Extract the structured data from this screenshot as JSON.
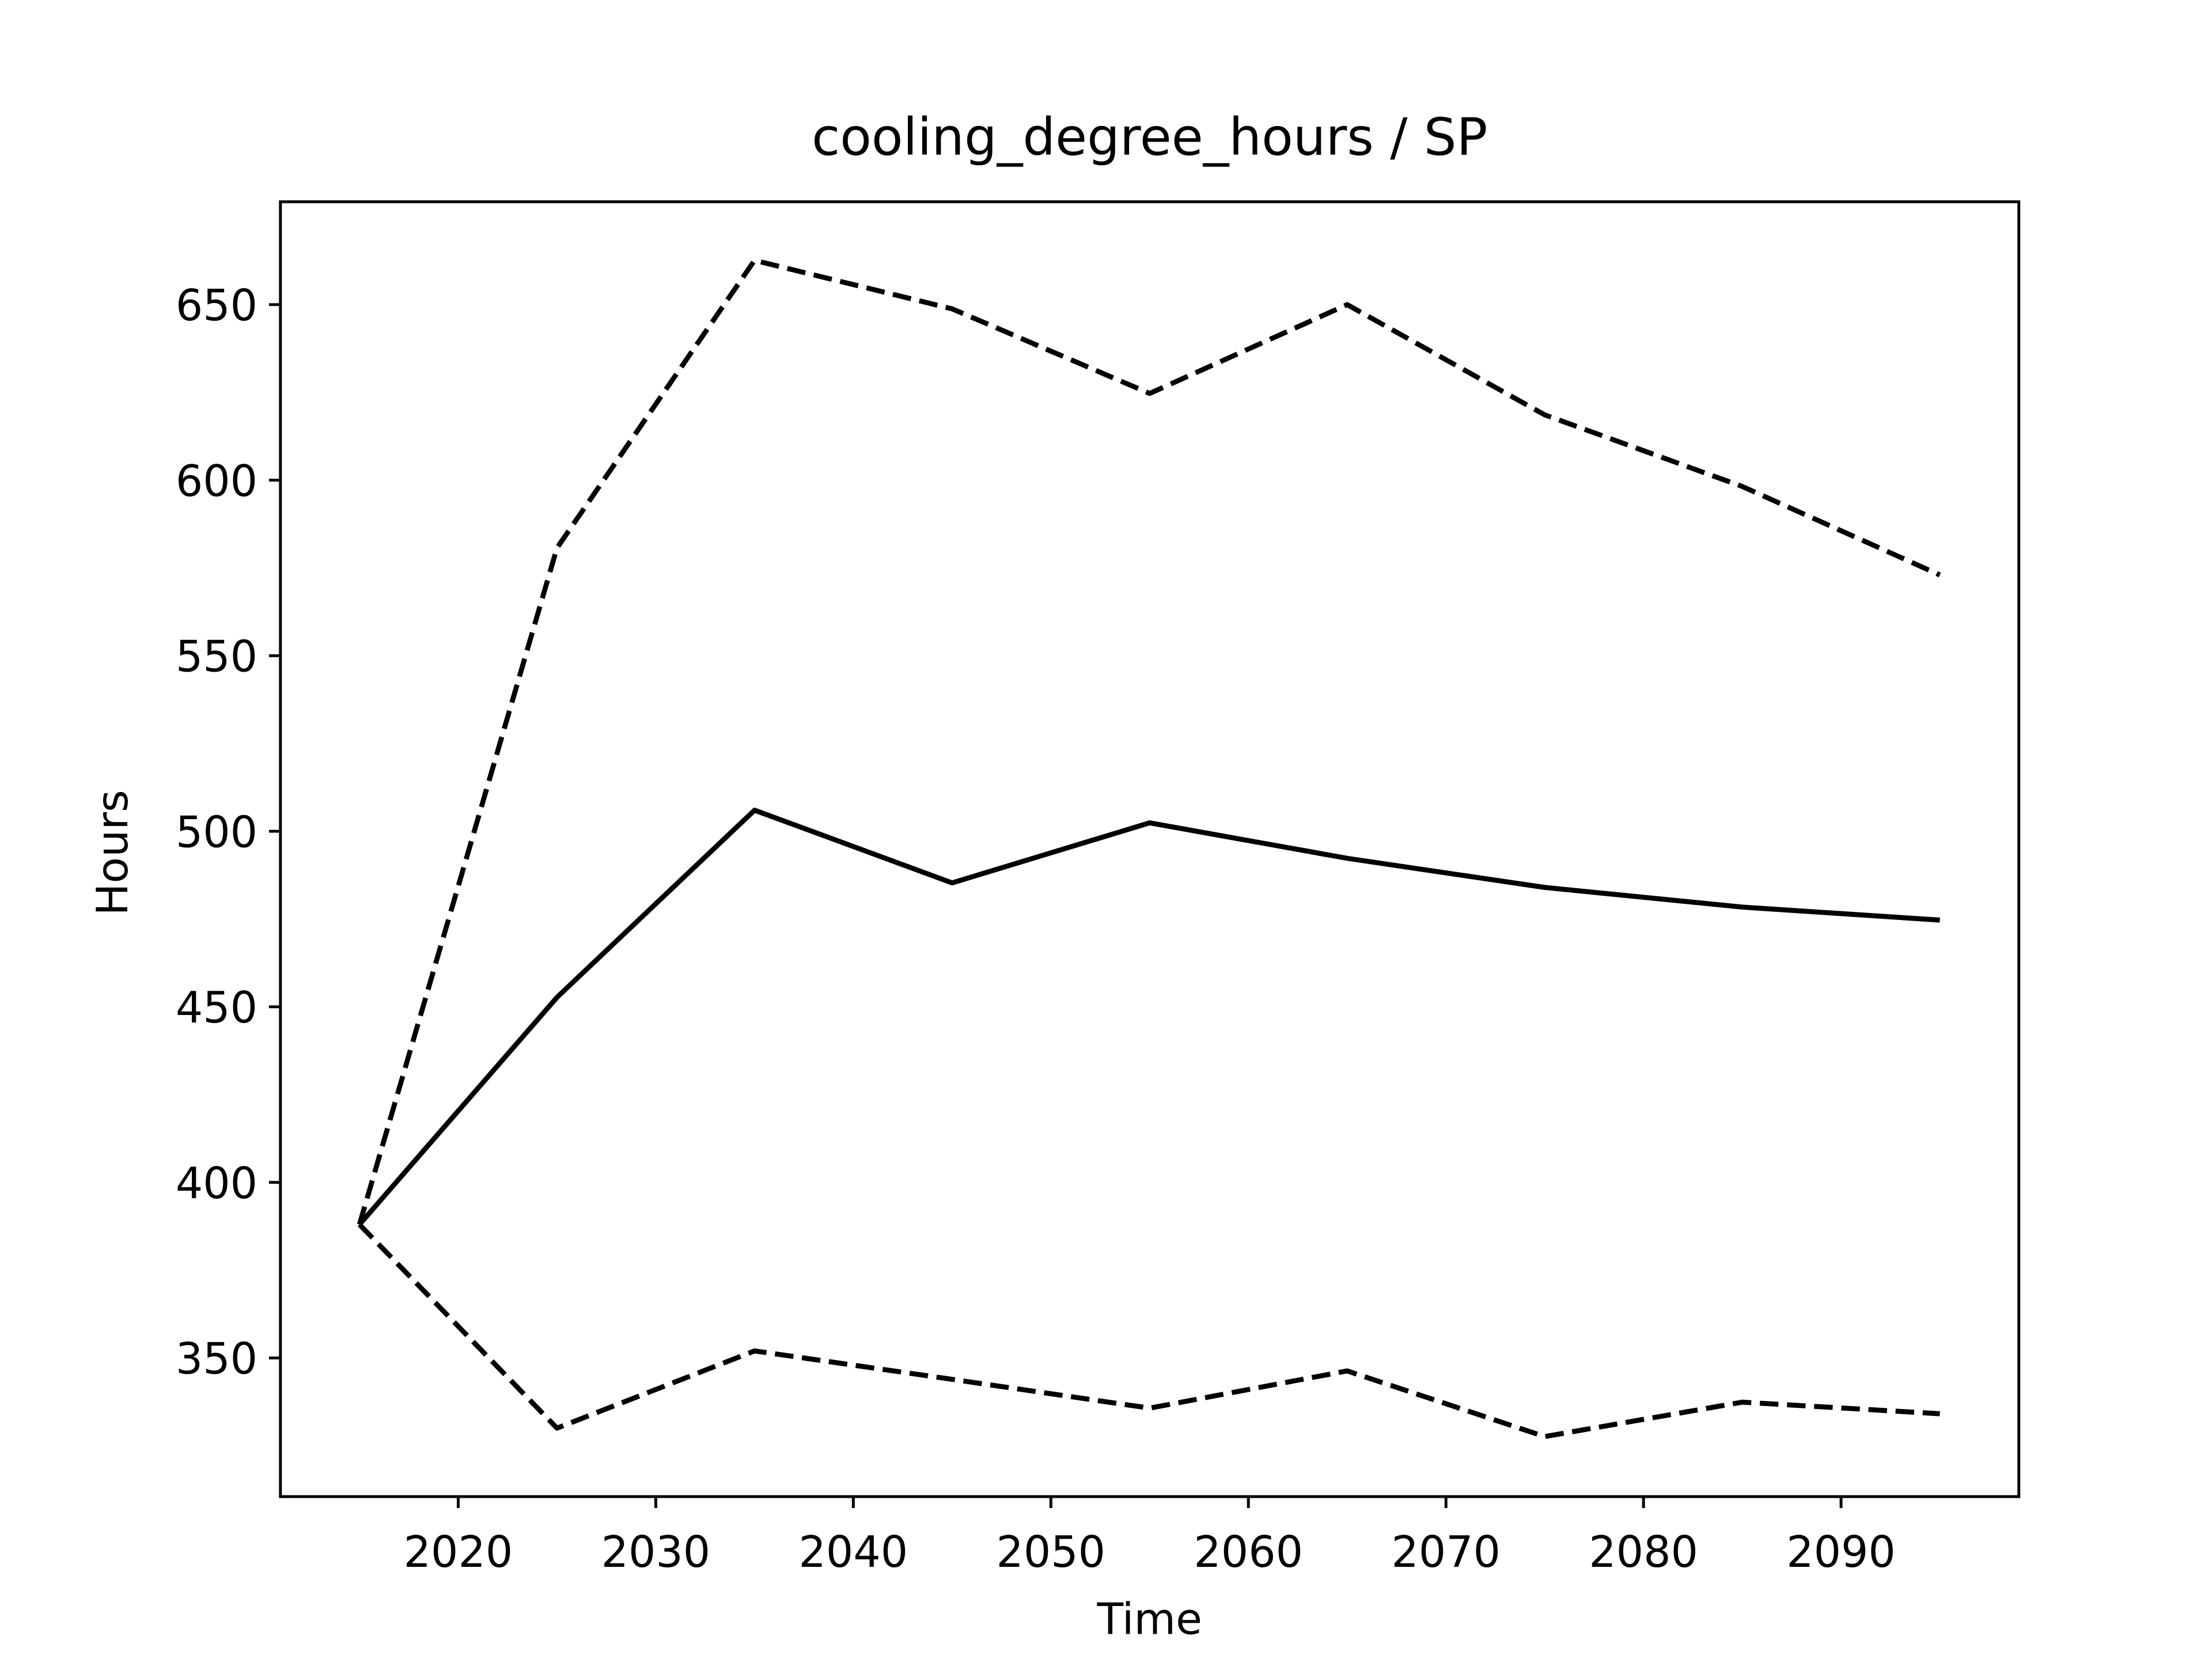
{
  "chart_data": {
    "type": "line",
    "title": "cooling_degree_hours / SP",
    "x_label": "Time",
    "y_label": "Hours",
    "x": [
      2015,
      2025,
      2035,
      2045,
      2055,
      2065,
      2075,
      2085,
      2095
    ],
    "series": [
      {
        "color": "#000000",
        "linestyle": "solid",
        "values": [
          388,
          452.7,
          506,
          485.3,
          502.4,
          492.3,
          484,
          478.4,
          474.7
        ]
      },
      {
        "color": "#000000",
        "linestyle": "dashed",
        "values": [
          388,
          580.7,
          662.6,
          648.8,
          624.7,
          650,
          618.6,
          598.2,
          573
        ]
      },
      {
        "color": "#000000",
        "linestyle": "dashed",
        "values": [
          388,
          330,
          352,
          343.9,
          335.7,
          346.3,
          327.6,
          337.4,
          334.1
        ]
      }
    ],
    "xlim": [
      2011,
      2099
    ],
    "ylim": [
      310.5,
      679.3
    ],
    "xticks": [
      2020,
      2030,
      2040,
      2050,
      2060,
      2070,
      2080,
      2090
    ],
    "yticks": [
      350,
      400,
      450,
      500,
      550,
      600,
      650
    ],
    "grid": false
  }
}
